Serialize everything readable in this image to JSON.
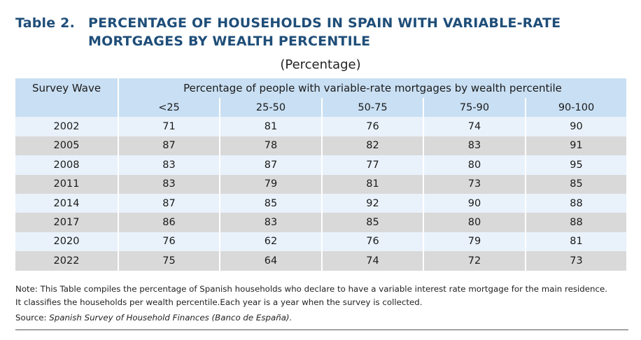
{
  "title": {
    "table_number": "Table 2.",
    "line1": "PERCENTAGE OF HOUSEHOLDS IN SPAIN WITH VARIABLE-RATE",
    "line2": "MORTGAGES BY WEALTH PERCENTILE"
  },
  "subtitle": "(Percentage)",
  "table": {
    "header_col0": "Survey Wave",
    "header_group": "Percentage of people with variable-rate mortgages by wealth percentile",
    "columns": [
      "<25",
      "25-50",
      "50-75",
      "75-90",
      "90-100"
    ],
    "rows": [
      {
        "wave": "2002",
        "values": [
          "71",
          "81",
          "76",
          "74",
          "90"
        ]
      },
      {
        "wave": "2005",
        "values": [
          "87",
          "78",
          "82",
          "83",
          "91"
        ]
      },
      {
        "wave": "2008",
        "values": [
          "83",
          "87",
          "77",
          "80",
          "95"
        ]
      },
      {
        "wave": "2011",
        "values": [
          "83",
          "79",
          "81",
          "73",
          "85"
        ]
      },
      {
        "wave": "2014",
        "values": [
          "87",
          "85",
          "92",
          "90",
          "88"
        ]
      },
      {
        "wave": "2017",
        "values": [
          "86",
          "83",
          "85",
          "80",
          "88"
        ]
      },
      {
        "wave": "2020",
        "values": [
          "76",
          "62",
          "76",
          "79",
          "81"
        ]
      },
      {
        "wave": "2022",
        "values": [
          "75",
          "64",
          "74",
          "72",
          "73"
        ]
      }
    ]
  },
  "note_line1": "Note: This Table compiles the percentage of Spanish households who declare to have a variable interest rate mortgage for the main residence.",
  "note_line2": "It classifies the households per wealth percentile.Each year is a year when the survey is collected.",
  "source_label": "Source: ",
  "source_text": "Spanish Survey of Household Finances (Banco de España).",
  "colors": {
    "title": "#1f4e79",
    "header_bg": "#c9dff3",
    "row_light": "#e9f2fb",
    "row_gray": "#d9d9d9"
  }
}
